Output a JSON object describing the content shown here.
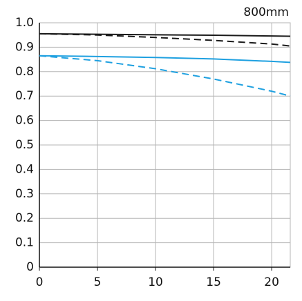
{
  "chart_data": {
    "type": "line",
    "title": "800mm",
    "x": [
      0,
      5,
      10,
      15,
      20,
      21.6
    ],
    "series": [
      {
        "color": "#1a1a1a",
        "style": "solid",
        "values": [
          0.955,
          0.953,
          0.951,
          0.949,
          0.946,
          0.945
        ]
      },
      {
        "color": "#1a1a1a",
        "style": "dashed",
        "values": [
          0.955,
          0.95,
          0.94,
          0.928,
          0.913,
          0.905
        ]
      },
      {
        "color": "#1ea0e0",
        "style": "solid",
        "values": [
          0.865,
          0.862,
          0.858,
          0.852,
          0.842,
          0.838
        ]
      },
      {
        "color": "#1ea0e0",
        "style": "dashed",
        "values": [
          0.865,
          0.845,
          0.812,
          0.77,
          0.72,
          0.7
        ]
      }
    ],
    "xlim": [
      0,
      21.6
    ],
    "xticks": [
      0,
      5,
      10,
      15,
      20
    ],
    "ylim": [
      0,
      1
    ],
    "yticks": [
      0,
      0.1,
      0.2,
      0.3,
      0.4,
      0.5,
      0.6,
      0.7,
      0.8,
      0.9,
      {
        "value": 1,
        "label": "1.0"
      }
    ],
    "grid": true
  }
}
